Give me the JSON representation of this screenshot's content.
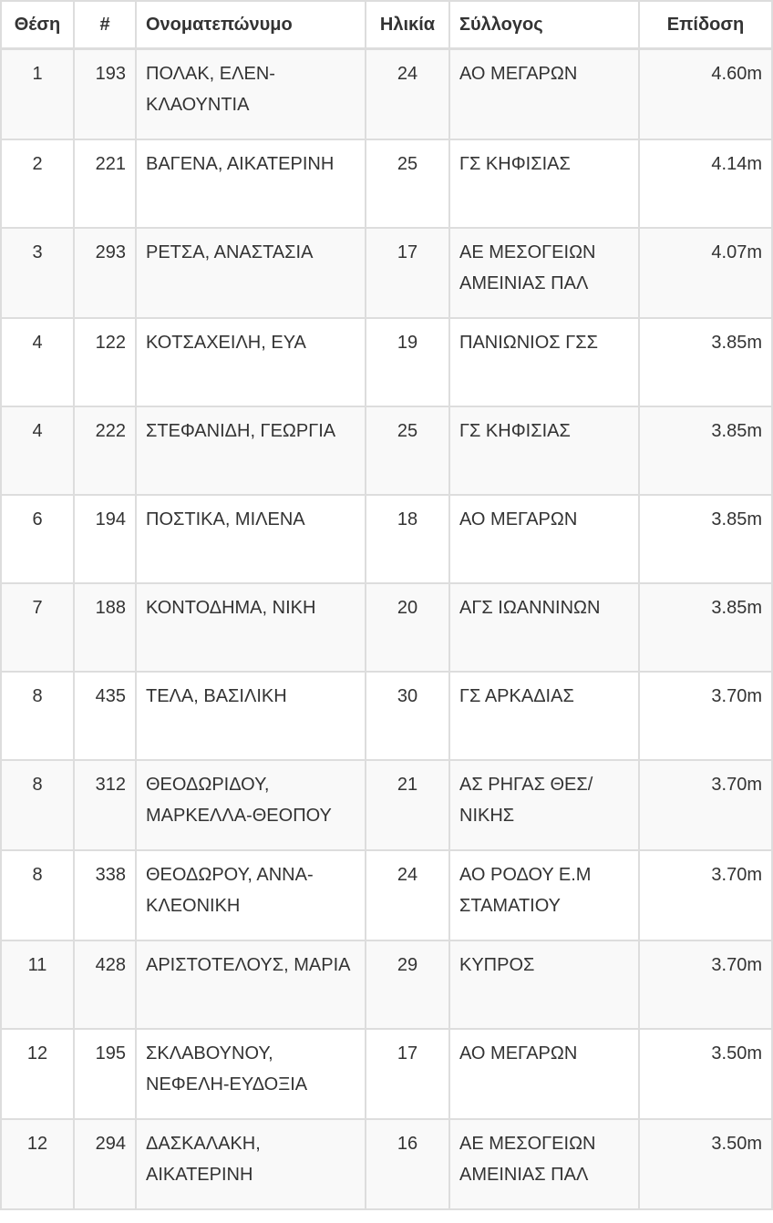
{
  "headers": {
    "place": "Θέση",
    "bib": "#",
    "name": "Ονοματεπώνυμο",
    "age": "Ηλικία",
    "club": "Σύλλογος",
    "mark": "Επίδοση"
  },
  "rows": [
    {
      "place": "1",
      "bib": "193",
      "name": "ΠΟΛΑΚ, ΕΛΕΝ-ΚΛΑΟΥΝΤΙΑ",
      "age": "24",
      "club": "ΑΟ ΜΕΓΑΡΩΝ",
      "mark": "4.60m"
    },
    {
      "place": "2",
      "bib": "221",
      "name": "ΒΑΓΕΝΑ, ΑΙΚΑΤΕΡΙΝΗ",
      "age": "25",
      "club": "ΓΣ ΚΗΦΙΣΙΑΣ",
      "mark": "4.14m"
    },
    {
      "place": "3",
      "bib": "293",
      "name": "ΡΕΤΣΑ, ΑΝΑΣΤΑΣΙΑ",
      "age": "17",
      "club": "ΑΕ ΜΕΣΟΓΕΙΩΝ ΑΜΕΙΝΙΑΣ ΠΑΛ",
      "mark": "4.07m"
    },
    {
      "place": "4",
      "bib": "122",
      "name": "ΚΟΤΣΑΧΕΙΛΗ, ΕΥΑ",
      "age": "19",
      "club": "ΠΑΝΙΩΝΙΟΣ ΓΣΣ",
      "mark": "3.85m"
    },
    {
      "place": "4",
      "bib": "222",
      "name": "ΣΤΕΦΑΝΙΔΗ, ΓΕΩΡΓΙΑ",
      "age": "25",
      "club": "ΓΣ ΚΗΦΙΣΙΑΣ",
      "mark": "3.85m"
    },
    {
      "place": "6",
      "bib": "194",
      "name": "ΠΟΣΤΙΚΑ, ΜΙΛΕΝΑ",
      "age": "18",
      "club": "ΑΟ ΜΕΓΑΡΩΝ",
      "mark": "3.85m"
    },
    {
      "place": "7",
      "bib": "188",
      "name": "ΚΟΝΤΟΔΗΜΑ, ΝΙΚΗ",
      "age": "20",
      "club": "ΑΓΣ ΙΩΑΝΝΙΝΩΝ",
      "mark": "3.85m"
    },
    {
      "place": "8",
      "bib": "435",
      "name": "ΤΕΛΑ, ΒΑΣΙΛΙΚΗ",
      "age": "30",
      "club": "ΓΣ ΑΡΚΑΔΙΑΣ",
      "mark": "3.70m"
    },
    {
      "place": "8",
      "bib": "312",
      "name": "ΘΕΟΔΩΡΙΔΟΥ, ΜΑΡΚΕΛΛΑ-ΘΕΟΠΟΥ",
      "age": "21",
      "club": "ΑΣ ΡΗΓΑΣ ΘΕΣ/ΝΙΚΗΣ",
      "mark": "3.70m"
    },
    {
      "place": "8",
      "bib": "338",
      "name": "ΘΕΟΔΩΡΟΥ, ΑΝΝΑ-ΚΛΕΟΝΙΚΗ",
      "age": "24",
      "club": "ΑΟ ΡΟΔΟΥ Ε.Μ ΣΤΑΜΑΤΙΟΥ",
      "mark": "3.70m"
    },
    {
      "place": "11",
      "bib": "428",
      "name": "ΑΡΙΣΤΟΤΕΛΟΥΣ, ΜΑΡΙΑ",
      "age": "29",
      "club": "ΚΥΠΡΟΣ",
      "mark": "3.70m"
    },
    {
      "place": "12",
      "bib": "195",
      "name": "ΣΚΛΑΒΟΥΝΟΥ, ΝΕΦΕΛΗ-ΕΥΔΟΞΙΑ",
      "age": "17",
      "club": "ΑΟ ΜΕΓΑΡΩΝ",
      "mark": "3.50m"
    },
    {
      "place": "12",
      "bib": "294",
      "name": "ΔΑΣΚΑΛΑΚΗ, ΑΙΚΑΤΕΡΙΝΗ",
      "age": "16",
      "club": "ΑΕ ΜΕΣΟΓΕΙΩΝ ΑΜΕΙΝΙΑΣ ΠΑΛ",
      "mark": "3.50m"
    }
  ]
}
